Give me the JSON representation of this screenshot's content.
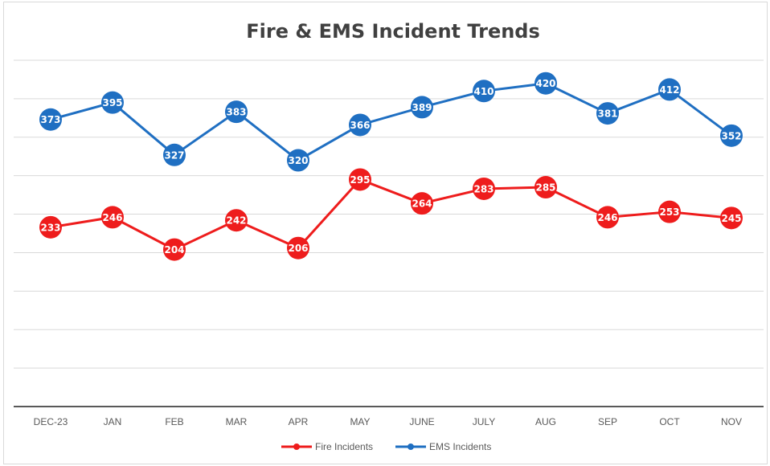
{
  "chart_data": {
    "type": "line",
    "title": "Fire & EMS Incident Trends",
    "xlabel": "",
    "ylabel": "",
    "categories": [
      "DEC-23",
      "JAN",
      "FEB",
      "MAR",
      "APR",
      "MAY",
      "JUNE",
      "JULY",
      "AUG",
      "SEP",
      "OCT",
      "NOV"
    ],
    "ylim": [
      0,
      450
    ],
    "grid": true,
    "legend": "bottom",
    "series": [
      {
        "name": "Fire Incidents",
        "color": "#ee1c1c",
        "values": [
          233,
          246,
          204,
          242,
          206,
          295,
          264,
          283,
          285,
          246,
          253,
          245
        ]
      },
      {
        "name": "EMS Incidents",
        "color": "#1f6fc2",
        "values": [
          373,
          395,
          327,
          383,
          320,
          366,
          389,
          410,
          420,
          381,
          412,
          352
        ]
      }
    ]
  }
}
